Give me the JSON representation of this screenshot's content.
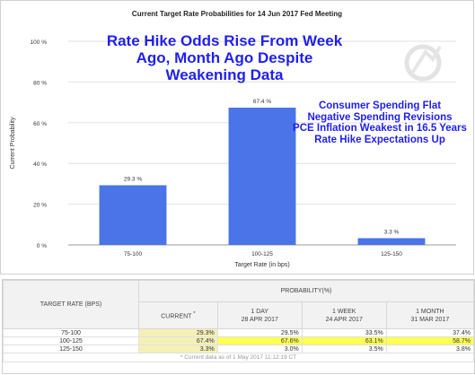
{
  "chart_data": {
    "type": "bar",
    "title": "Current Target Rate Probabilities for 14 Jun 2017 Fed Meeting",
    "xlabel": "Target Rate (in bps)",
    "ylabel": "Current Probability",
    "categories": [
      "75-100",
      "100-125",
      "125-150"
    ],
    "values": [
      29.3,
      67.4,
      3.3
    ],
    "value_labels": [
      "29.3 %",
      "67.4 %",
      "3.3 %"
    ],
    "ylim": [
      0,
      100
    ],
    "yticks": [
      0,
      20,
      40,
      60,
      80,
      100
    ],
    "ytick_labels": [
      "0 %",
      "20 %",
      "40 %",
      "60 %",
      "80 %",
      "100 %"
    ],
    "bar_color": "#4a74e8",
    "grid": true,
    "annotation_title": [
      "Rate Hike Odds Rise From Week",
      "Ago, Month Ago Despite",
      "Weakening Data"
    ],
    "annotation_notes": [
      "Consumer Spending Flat",
      "Negative Spending Revisions",
      "PCE Inflation Weakest in 16.5 Years",
      "Rate Hike Expectations Up"
    ],
    "annotation_color": "#1f1ff0"
  },
  "table": {
    "rate_header": "TARGET RATE (BPS)",
    "prob_header": "PROBABILITY(%)",
    "columns": [
      {
        "label": "CURRENT",
        "mark": "*",
        "date": ""
      },
      {
        "label": "1 DAY",
        "date": "28 APR 2017"
      },
      {
        "label": "1 WEEK",
        "date": "24 APR 2017"
      },
      {
        "label": "1 MONTH",
        "date": "31 MAR 2017"
      }
    ],
    "rows": [
      {
        "rate": "75-100",
        "values": [
          "29.3%",
          "29.5%",
          "33.5%",
          "37.4%"
        ]
      },
      {
        "rate": "100-125",
        "values": [
          "67.4%",
          "67.6%",
          "63.1%",
          "58.7%"
        ]
      },
      {
        "rate": "125-150",
        "values": [
          "3.3%",
          "3.0%",
          "3.5%",
          "3.8%"
        ]
      }
    ],
    "footnote": "* Current data as of 1 May 2017 11:12:19 CT",
    "highlight_current": "#f5f0b8",
    "highlight_max": "#ffff55"
  }
}
